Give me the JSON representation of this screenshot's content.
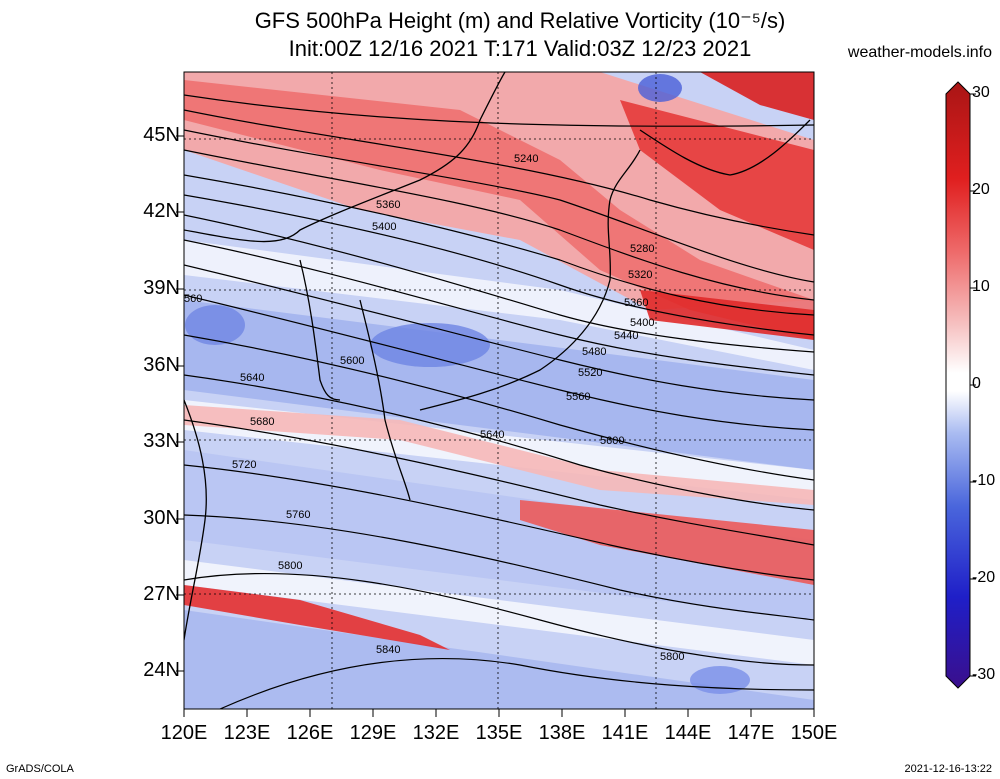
{
  "header": {
    "title_line1": "GFS 500hPa Height (m) and Relative Vorticity (10⁻⁵/s)",
    "title_line2": "Init:00Z 12/16 2021 T:171 Valid:03Z 12/23 2021",
    "site": "weather-models.info"
  },
  "footer": {
    "left": "GrADS/COLA",
    "right": "2021-12-16-13:22"
  },
  "map": {
    "latitudes": [
      "45N",
      "42N",
      "39N",
      "36N",
      "33N",
      "30N",
      "27N",
      "24N"
    ],
    "longitudes": [
      "120E",
      "123E",
      "126E",
      "129E",
      "132E",
      "135E",
      "138E",
      "141E",
      "144E",
      "147E",
      "150E"
    ],
    "lat_range": [
      22.5,
      47.0
    ],
    "lon_range": [
      120,
      150
    ],
    "contour_labels": [
      "5240",
      "5280",
      "5320",
      "5360",
      "5400",
      "5440",
      "5480",
      "5520",
      "5560",
      "5600",
      "5640",
      "5680",
      "5720",
      "5760",
      "5800",
      "5840",
      "560"
    ]
  },
  "colorbar": {
    "ticks": [
      "30",
      "20",
      "10",
      "0",
      "-10",
      "-20",
      "-30"
    ],
    "colors": [
      "#3a0f8c",
      "#1f1fc8",
      "#3d5bd9",
      "#8ea6ee",
      "#d7e0fa",
      "#ffffff",
      "#f9d3d3",
      "#f28c8c",
      "#e83030",
      "#c81a1a",
      "#a91515"
    ]
  }
}
